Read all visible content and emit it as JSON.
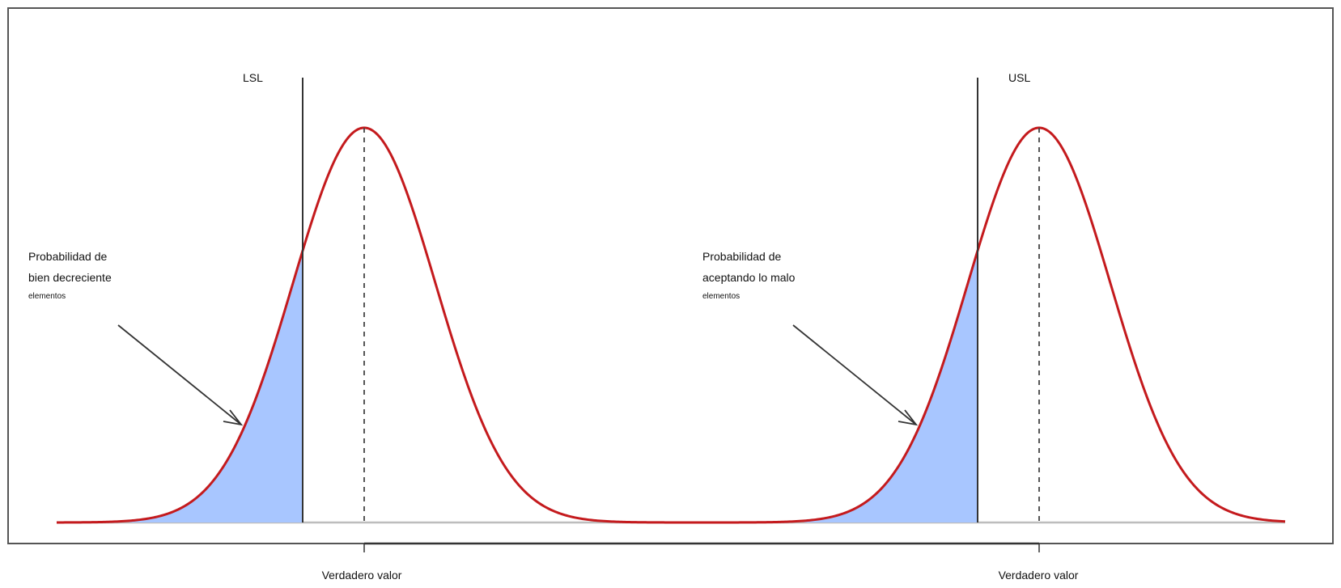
{
  "colors": {
    "curve": "#c41a1d",
    "fill": "#a8c6ff",
    "baseline": "#b9b9b9",
    "line": "#333333",
    "frame": "#555555"
  },
  "left_panel": {
    "limit_label": "LSL",
    "annotation_line1": "Probabilidad de",
    "annotation_line2": "bien decreciente",
    "annotation_small": "elementos",
    "axis_label": "Verdadero valor"
  },
  "right_panel": {
    "limit_label": "USL",
    "annotation_line1": "Probabilidad de",
    "annotation_line2": "aceptando lo malo",
    "annotation_small": "elementos",
    "axis_label": "Verdadero valor"
  }
}
